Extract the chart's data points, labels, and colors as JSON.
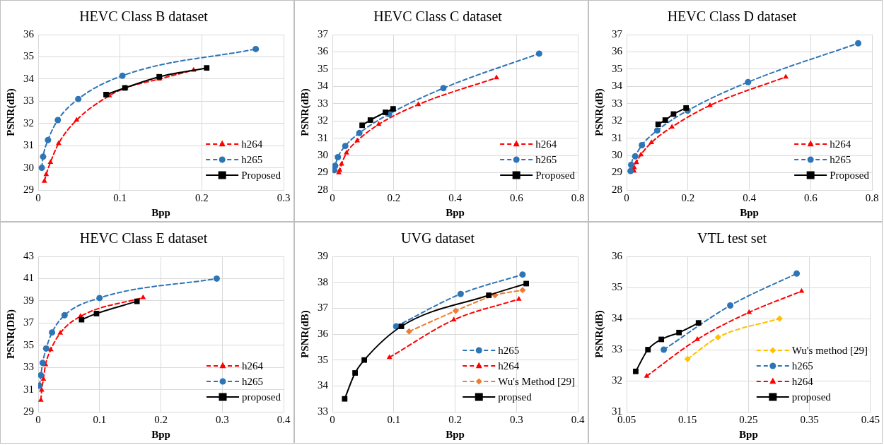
{
  "chart_data": [
    {
      "type": "line",
      "title": "HEVC Class B dataset",
      "xlabel": "Bpp",
      "ylabel": "PSNR(dB)",
      "xlim": [
        0,
        0.3
      ],
      "xticks": [
        0,
        0.1,
        0.2,
        0.3
      ],
      "ylim": [
        29,
        36
      ],
      "yticks": [
        29,
        30,
        31,
        32,
        33,
        34,
        35,
        36
      ],
      "grid": true,
      "legend": "bottom right",
      "series": [
        {
          "name": "h264",
          "color": "#ff0000",
          "marker": "triangle",
          "line_style": "dashed",
          "x": [
            0.0076,
            0.0098,
            0.015,
            0.025,
            0.047,
            0.087,
            0.107,
            0.148,
            0.19
          ],
          "values": [
            29.4,
            29.7,
            30.25,
            31.1,
            32.15,
            33.25,
            33.6,
            34.0,
            34.4
          ]
        },
        {
          "name": "h265",
          "color": "#2e75b6",
          "marker": "circle",
          "line_style": "dashed",
          "x": [
            0.0044,
            0.006,
            0.012,
            0.024,
            0.049,
            0.103,
            0.266
          ],
          "values": [
            30.0,
            30.5,
            31.25,
            32.15,
            33.1,
            34.15,
            35.35
          ]
        },
        {
          "name": "Proposed",
          "color": "#000000",
          "marker": "square",
          "line_style": "solid",
          "x": [
            0.083,
            0.106,
            0.148,
            0.206
          ],
          "values": [
            33.3,
            33.6,
            34.1,
            34.5
          ]
        }
      ]
    },
    {
      "type": "line",
      "title": "HEVC Class C dataset",
      "xlabel": "Bpp",
      "ylabel": "PSNR(dB)",
      "xlim": [
        0,
        0.8
      ],
      "xticks": [
        0,
        0.2,
        0.4,
        0.6,
        0.8
      ],
      "ylim": [
        28,
        37
      ],
      "yticks": [
        28,
        29,
        30,
        31,
        32,
        33,
        34,
        35,
        36,
        37
      ],
      "grid": true,
      "legend": "bottom right",
      "series": [
        {
          "name": "h264",
          "color": "#ff0000",
          "marker": "triangle",
          "line_style": "dashed",
          "x": [
            0.021,
            0.024,
            0.03,
            0.046,
            0.081,
            0.151,
            0.28,
            0.535
          ],
          "values": [
            29.0,
            29.15,
            29.5,
            30.15,
            30.85,
            31.8,
            32.95,
            34.5
          ]
        },
        {
          "name": "h265",
          "color": "#2e75b6",
          "marker": "circle",
          "line_style": "dashed",
          "x": [
            0.006,
            0.009,
            0.018,
            0.042,
            0.088,
            0.185,
            0.362,
            0.674
          ],
          "values": [
            29.15,
            29.4,
            29.9,
            30.55,
            31.3,
            32.4,
            33.9,
            35.9
          ]
        },
        {
          "name": "Proposed",
          "color": "#000000",
          "marker": "square",
          "line_style": "solid",
          "x": [
            0.097,
            0.124,
            0.173,
            0.198
          ],
          "values": [
            31.75,
            32.05,
            32.5,
            32.7
          ]
        }
      ]
    },
    {
      "type": "line",
      "title": "HEVC Class D dataset",
      "xlabel": "Bpp",
      "ylabel": "PSNR(dB)",
      "xlim": [
        0,
        0.8
      ],
      "xticks": [
        0,
        0.2,
        0.4,
        0.6,
        0.8
      ],
      "ylim": [
        28,
        37
      ],
      "yticks": [
        28,
        29,
        30,
        31,
        32,
        33,
        34,
        35,
        36,
        37
      ],
      "grid": true,
      "legend": "bottom right",
      "series": [
        {
          "name": "h264",
          "color": "#ff0000",
          "marker": "triangle",
          "line_style": "dashed",
          "x": [
            0.024,
            0.025,
            0.032,
            0.047,
            0.081,
            0.148,
            0.272,
            0.519
          ],
          "values": [
            29.1,
            29.3,
            29.6,
            30.05,
            30.75,
            31.65,
            32.9,
            34.55
          ]
        },
        {
          "name": "h265",
          "color": "#2e75b6",
          "marker": "circle",
          "line_style": "dashed",
          "x": [
            0.013,
            0.015,
            0.028,
            0.05,
            0.1,
            0.199,
            0.396,
            0.755
          ],
          "values": [
            29.1,
            29.45,
            29.95,
            30.6,
            31.45,
            32.6,
            34.25,
            36.5
          ]
        },
        {
          "name": "Proposed",
          "color": "#000000",
          "marker": "square",
          "line_style": "solid",
          "x": [
            0.103,
            0.126,
            0.153,
            0.194
          ],
          "values": [
            31.8,
            32.05,
            32.4,
            32.75
          ]
        }
      ]
    },
    {
      "type": "line",
      "title": "HEVC Class E dataset",
      "xlabel": "Bpp",
      "ylabel": "PSNR(DB)",
      "xlim": [
        0,
        0.4
      ],
      "xticks": [
        0,
        0.1,
        0.2,
        0.3,
        0.4
      ],
      "ylim": [
        29,
        43
      ],
      "yticks": [
        29,
        31,
        33,
        35,
        37,
        39,
        41,
        43
      ],
      "grid": true,
      "legend": "bottom right",
      "series": [
        {
          "name": "h264",
          "color": "#ff0000",
          "marker": "triangle",
          "line_style": "dashed",
          "x": [
            0.0044,
            0.0057,
            0.0085,
            0.012,
            0.0206,
            0.036,
            0.069,
            0.171
          ],
          "values": [
            30.05,
            30.95,
            31.95,
            33.25,
            34.6,
            36.1,
            37.6,
            39.3
          ]
        },
        {
          "name": "h265",
          "color": "#2e75b6",
          "marker": "circle",
          "line_style": "dashed",
          "x": [
            0.002,
            0.0044,
            0.0073,
            0.013,
            0.0226,
            0.043,
            0.1,
            0.291
          ],
          "values": [
            31.35,
            32.3,
            33.4,
            34.7,
            36.15,
            37.7,
            39.25,
            41.0
          ]
        },
        {
          "name": "proposed",
          "color": "#000000",
          "marker": "square",
          "line_style": "solid",
          "x": [
            0.0707,
            0.095,
            0.161
          ],
          "values": [
            37.3,
            37.85,
            38.95
          ]
        }
      ]
    },
    {
      "type": "line",
      "title": "UVG dataset",
      "xlabel": "Bpp",
      "ylabel": "PSNR(dB)",
      "xlim": [
        0,
        0.4
      ],
      "xticks": [
        0,
        0.1,
        0.2,
        0.3,
        0.4
      ],
      "ylim": [
        33,
        39
      ],
      "yticks": [
        33,
        34,
        35,
        36,
        37,
        38,
        39
      ],
      "grid": true,
      "legend": "bottom right",
      "series": [
        {
          "name": "h265",
          "color": "#2e75b6",
          "marker": "circle",
          "line_style": "dashed",
          "x": [
            0.104,
            0.209,
            0.31
          ],
          "values": [
            36.3,
            37.55,
            38.3
          ]
        },
        {
          "name": "h264",
          "color": "#ff0000",
          "marker": "triangle",
          "line_style": "dashed",
          "x": [
            0.093,
            0.198,
            0.304
          ],
          "values": [
            35.1,
            36.55,
            37.35
          ]
        },
        {
          "name": "Wu's Method [29]",
          "color": "#ed7d31",
          "marker": "diamond",
          "line_style": "dashed",
          "x": [
            0.125,
            0.201,
            0.265,
            0.31
          ],
          "values": [
            36.1,
            36.9,
            37.5,
            37.7
          ]
        },
        {
          "name": "propsed",
          "color": "#000000",
          "marker": "square",
          "line_style": "solid",
          "x": [
            0.02,
            0.037,
            0.052,
            0.1125,
            0.255,
            0.316
          ],
          "values": [
            33.5,
            34.5,
            35.0,
            36.3,
            37.5,
            37.95
          ]
        }
      ]
    },
    {
      "type": "line",
      "title": "VTL test set",
      "xlabel": "Bpp",
      "ylabel": "PSNR(dB)",
      "xlim": [
        0.05,
        0.45
      ],
      "xticks": [
        0.05,
        0.15,
        0.25,
        0.35,
        0.45
      ],
      "ylim": [
        31,
        36
      ],
      "yticks": [
        31,
        32,
        33,
        34,
        35,
        36
      ],
      "grid": true,
      "legend": "bottom right",
      "series": [
        {
          "name": "Wu's method [29]",
          "color": "#ffc000",
          "marker": "diamond",
          "line_style": "dashed",
          "x": [
            0.15,
            0.2,
            0.301
          ],
          "values": [
            32.7,
            33.4,
            34.0
          ]
        },
        {
          "name": "h265",
          "color": "#2e75b6",
          "marker": "circle",
          "line_style": "dashed",
          "x": [
            0.111,
            0.22,
            0.329
          ],
          "values": [
            33.0,
            34.42,
            35.45
          ]
        },
        {
          "name": "h264",
          "color": "#ff0000",
          "marker": "triangle",
          "line_style": "dashed",
          "x": [
            0.083,
            0.166,
            0.251,
            0.337
          ],
          "values": [
            32.15,
            33.33,
            34.2,
            34.88
          ]
        },
        {
          "name": "proposed",
          "color": "#000000",
          "marker": "square",
          "line_style": "solid",
          "x": [
            0.065,
            0.085,
            0.107,
            0.136,
            0.168
          ],
          "values": [
            32.3,
            33.0,
            33.33,
            33.55,
            33.86
          ]
        }
      ]
    }
  ]
}
